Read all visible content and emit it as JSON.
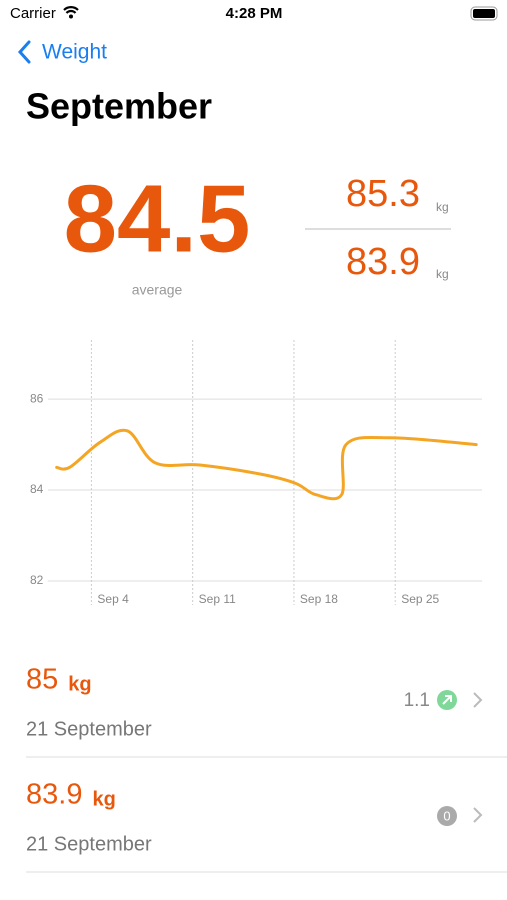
{
  "status_bar": {
    "carrier": "Carrier",
    "time": "4:28 PM"
  },
  "nav": {
    "back": "Weight"
  },
  "header": {
    "title": "September"
  },
  "summary": {
    "average": "84.5",
    "average_label": "average",
    "max": "85.3",
    "max_unit": "kg",
    "min": "83.9",
    "min_unit": "kg"
  },
  "chart_data": {
    "type": "line",
    "color": "#f5a524",
    "x": [
      1.6,
      2.5,
      4.6,
      6.5,
      8.4,
      11.5,
      15.7,
      18.1,
      19.5,
      21.3,
      21.6,
      24.7,
      30.6
    ],
    "values": [
      84.5,
      84.5,
      85.05,
      85.3,
      84.6,
      84.55,
      84.35,
      84.15,
      83.9,
      83.9,
      85.0,
      85.15,
      85.0
    ],
    "xlim": [
      1,
      31
    ],
    "xticks": [
      {
        "value": 4,
        "label": "Sep 4"
      },
      {
        "value": 11,
        "label": "Sep 11"
      },
      {
        "value": 18,
        "label": "Sep 18"
      },
      {
        "value": 25,
        "label": "Sep 25"
      }
    ],
    "ylim": [
      82,
      87.3
    ],
    "yticks": [
      82,
      84,
      86
    ],
    "grid": true
  },
  "entries": [
    {
      "value": "85",
      "unit": "kg",
      "date": "21 September",
      "change": "1.1"
    },
    {
      "value": "83.9",
      "unit": "kg",
      "date": "21 September",
      "change": "0"
    }
  ]
}
